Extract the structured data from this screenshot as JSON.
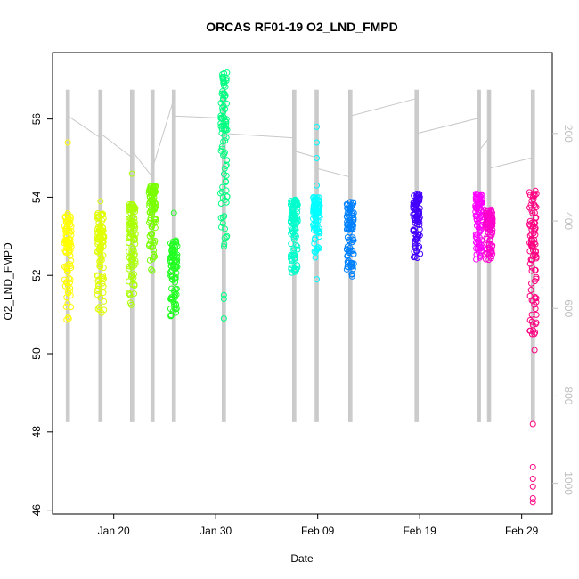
{
  "chart_data": {
    "type": "scatter",
    "title": "ORCAS RF01-19 O2_LND_FMPD",
    "xlabel": "Date",
    "ylabel": "O2_LND_FMPD",
    "xlim": [
      "2016-01-14",
      "2016-03-03"
    ],
    "ylim": [
      45.9,
      57.7
    ],
    "yticks": [
      46,
      48,
      50,
      52,
      54,
      56
    ],
    "xticks": [
      {
        "date": "2016-01-20",
        "label": "Jan 20"
      },
      {
        "date": "2016-01-30",
        "label": "Jan 30"
      },
      {
        "date": "2016-02-09",
        "label": "Feb 09"
      },
      {
        "date": "2016-02-19",
        "label": "Feb 19"
      },
      {
        "date": "2016-02-29",
        "label": "Feb 29"
      }
    ],
    "y2": {
      "ylim": [
        1070,
        15
      ],
      "ticks": [
        200,
        400,
        600,
        800,
        1000
      ],
      "color": "#bfbfbf"
    },
    "grid": false,
    "legend": "none",
    "flights": [
      {
        "date": "2016-01-15.5",
        "color": "#ffff00",
        "ymin": 50.8,
        "ymax": 53.6,
        "outliers": [
          55.4
        ],
        "pressure_min": 100,
        "pressure_max": 860
      },
      {
        "date": "2016-01-18.7",
        "color": "#e0ff00",
        "ymin": 50.9,
        "ymax": 53.6,
        "outliers": [
          53.9
        ],
        "pressure_min": 100,
        "pressure_max": 860
      },
      {
        "date": "2016-01-21.8",
        "color": "#aaff00",
        "ymin": 51.2,
        "ymax": 53.9,
        "outliers": [
          54.6
        ],
        "pressure_min": 100,
        "pressure_max": 860
      },
      {
        "date": "2016-01-23.8",
        "color": "#7aff00",
        "ymin": 52.1,
        "ymax": 54.3,
        "outliers": [],
        "pressure_min": 100,
        "pressure_max": 860
      },
      {
        "date": "2016-01-25.9",
        "color": "#22ff22",
        "ymin": 50.9,
        "ymax": 52.9,
        "outliers": [
          53.6
        ],
        "pressure_min": 100,
        "pressure_max": 860
      },
      {
        "date": "2016-01-30.8",
        "color": "#00ff80",
        "ymin": 52.7,
        "ymax": 57.3,
        "outliers": [
          50.9,
          51.4,
          51.5
        ],
        "pressure_min": 100,
        "pressure_max": 860
      },
      {
        "date": "2016-02-06.7",
        "color": "#00ffcc",
        "ymin": 52.0,
        "ymax": 54.0,
        "outliers": [],
        "pressure_min": 100,
        "pressure_max": 860
      },
      {
        "date": "2016-02-08.9",
        "color": "#00ffff",
        "ymin": 52.4,
        "ymax": 54.0,
        "outliers": [
          51.9,
          54.3,
          55.0,
          55.4,
          55.8
        ],
        "pressure_min": 100,
        "pressure_max": 860
      },
      {
        "date": "2016-02-12.2",
        "color": "#0080ff",
        "ymin": 51.8,
        "ymax": 53.9,
        "outliers": [],
        "pressure_min": 100,
        "pressure_max": 860
      },
      {
        "date": "2016-02-18.7",
        "color": "#4400ff",
        "ymin": 52.4,
        "ymax": 54.1,
        "outliers": [],
        "pressure_min": 100,
        "pressure_max": 860
      },
      {
        "date": "2016-02-24.8",
        "color": "#ff00ff",
        "ymin": 52.4,
        "ymax": 54.1,
        "outliers": [],
        "pressure_min": 100,
        "pressure_max": 860
      },
      {
        "date": "2016-02-25.8",
        "color": "#ff00cc",
        "ymin": 52.4,
        "ymax": 53.7,
        "outliers": [],
        "pressure_min": 100,
        "pressure_max": 860
      },
      {
        "date": "2016-03-01.1",
        "color": "#ff0080",
        "ymin": 50.0,
        "ymax": 54.2,
        "outliers": [
          48.2,
          47.1,
          46.8,
          46.6,
          46.3,
          46.2
        ],
        "pressure_min": 100,
        "pressure_max": 860
      }
    ]
  }
}
